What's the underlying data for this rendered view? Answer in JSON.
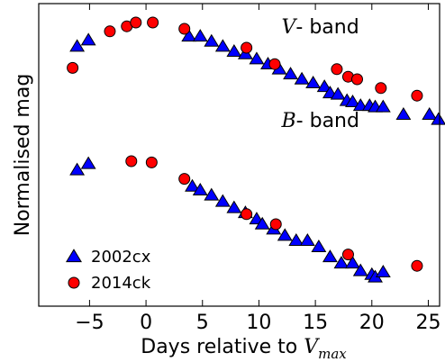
{
  "chart_data": {
    "type": "scatter",
    "xlabel_text": "Days relative to ",
    "xlabel_math": "V",
    "xlabel_sub": "max",
    "ylabel": "Normalised mag",
    "xlim": [
      -9.5,
      26
    ],
    "y_inverted": true,
    "y_ticks_shown": false,
    "x_ticks": [
      -5,
      0,
      5,
      10,
      15,
      20,
      25
    ],
    "x_tick_labels": [
      "−5",
      "0",
      "5",
      "10",
      "15",
      "20",
      "25"
    ],
    "grid": false,
    "legend": "bottom-left",
    "annotations": [
      {
        "math": "V",
        "text": "- band",
        "x": 12.0,
        "y": 0.9
      },
      {
        "math": "B",
        "text": "- band",
        "x": 12.0,
        "y": 4.6
      }
    ],
    "series": [
      {
        "name": "2002cx",
        "marker": "triangle",
        "color": "#0000ff",
        "edge": "#000000",
        "points": [
          [
            -6.1,
            1.7
          ],
          [
            -5.1,
            1.45
          ],
          [
            3.8,
            1.3
          ],
          [
            4.8,
            1.3
          ],
          [
            5.8,
            1.5
          ],
          [
            6.8,
            1.7
          ],
          [
            7.8,
            1.9
          ],
          [
            8.8,
            2.0
          ],
          [
            9.8,
            2.2
          ],
          [
            10.8,
            2.4
          ],
          [
            11.8,
            2.6
          ],
          [
            12.8,
            2.8
          ],
          [
            13.8,
            3.0
          ],
          [
            14.8,
            3.15
          ],
          [
            15.8,
            3.3
          ],
          [
            16.3,
            3.55
          ],
          [
            17.0,
            3.6
          ],
          [
            17.8,
            3.85
          ],
          [
            18.3,
            3.9
          ],
          [
            19.0,
            4.05
          ],
          [
            19.8,
            4.05
          ],
          [
            20.3,
            4.1
          ],
          [
            21.0,
            4.1
          ],
          [
            22.8,
            4.4
          ],
          [
            25.1,
            4.4
          ],
          [
            25.9,
            4.6
          ],
          [
            -6.1,
            6.6
          ],
          [
            -5.1,
            6.35
          ],
          [
            4.1,
            7.25
          ],
          [
            4.8,
            7.4
          ],
          [
            5.8,
            7.6
          ],
          [
            6.8,
            7.85
          ],
          [
            7.8,
            8.1
          ],
          [
            8.8,
            8.3
          ],
          [
            9.8,
            8.55
          ],
          [
            10.3,
            8.75
          ],
          [
            11.3,
            8.95
          ],
          [
            12.3,
            9.2
          ],
          [
            13.3,
            9.4
          ],
          [
            14.3,
            9.4
          ],
          [
            15.3,
            9.65
          ],
          [
            16.3,
            10.05
          ],
          [
            17.3,
            10.3
          ],
          [
            18.3,
            10.3
          ],
          [
            19.0,
            10.6
          ],
          [
            20.0,
            10.75
          ],
          [
            20.3,
            10.85
          ],
          [
            21.0,
            10.65
          ]
        ]
      },
      {
        "name": "2014ck",
        "marker": "circle",
        "color": "#ff0000",
        "edge": "#000000",
        "points": [
          [
            -6.5,
            2.55
          ],
          [
            -3.2,
            1.1
          ],
          [
            -1.7,
            0.9
          ],
          [
            -0.9,
            0.75
          ],
          [
            0.6,
            0.75
          ],
          [
            3.4,
            1.0
          ],
          [
            8.9,
            1.75
          ],
          [
            11.4,
            2.4
          ],
          [
            16.9,
            2.6
          ],
          [
            17.9,
            2.9
          ],
          [
            18.7,
            3.0
          ],
          [
            20.8,
            3.35
          ],
          [
            24.0,
            3.65
          ],
          [
            -1.3,
            6.25
          ],
          [
            0.5,
            6.3
          ],
          [
            3.4,
            6.95
          ],
          [
            8.9,
            8.35
          ],
          [
            11.5,
            8.75
          ],
          [
            17.9,
            9.95
          ],
          [
            24.0,
            10.4
          ]
        ]
      }
    ]
  }
}
